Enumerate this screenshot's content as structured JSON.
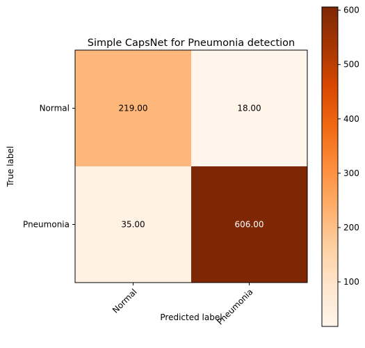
{
  "chart_data": {
    "type": "heatmap",
    "title": "Simple CapsNet for Pneumonia detection",
    "xlabel": "Predicted label",
    "ylabel": "True label",
    "x_categories": [
      "Normal",
      "Pneumonia"
    ],
    "y_categories": [
      "Normal",
      "Pneumonia"
    ],
    "values": [
      [
        219,
        18
      ],
      [
        35,
        606
      ]
    ],
    "cell_labels": [
      [
        "219.00",
        "18.00"
      ],
      [
        "35.00",
        "606.00"
      ]
    ],
    "colormap": "Oranges",
    "colorbar": {
      "range": [
        18,
        606
      ],
      "ticks": [
        100,
        200,
        300,
        400,
        500,
        600
      ],
      "tick_labels": [
        "100",
        "200",
        "300",
        "400",
        "500",
        "600"
      ]
    },
    "text_colors": {
      "dark": "#000000",
      "light": "#ffffff"
    }
  }
}
